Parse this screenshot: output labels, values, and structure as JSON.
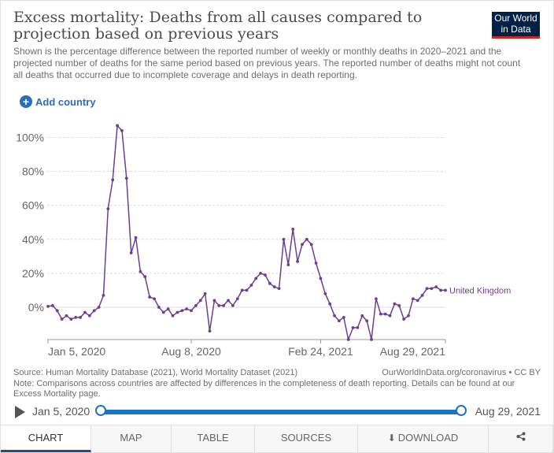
{
  "header": {
    "title": "Excess mortality: Deaths from all causes compared to projection based on previous years",
    "subtitle": "Shown is the percentage difference between the reported number of weekly or monthly deaths in 2020–2021 and the projected number of deaths for the same period based on previous years. The reported number of deaths might not count all deaths that occurred due to incomplete coverage and delays in death reporting.",
    "logo_line1": "Our World",
    "logo_line2": "in Data"
  },
  "controls": {
    "add_country": "Add country"
  },
  "chart_data": {
    "type": "line",
    "ylim": [
      -20,
      108
    ],
    "y_ticks": [
      0,
      20,
      40,
      60,
      80,
      100
    ],
    "y_tick_labels": [
      "0%",
      "20%",
      "40%",
      "60%",
      "80%",
      "100%"
    ],
    "x_tick_labels": [
      "Jan 5, 2020",
      "Aug 8, 2020",
      "Feb 24, 2021",
      "Aug 29, 2021"
    ],
    "x_tick_index": [
      0,
      31,
      59,
      86
    ],
    "series": [
      {
        "name": "United Kingdom",
        "color": "#6d3e91",
        "values": [
          0.5,
          1,
          -2,
          -7,
          -5,
          -7,
          -6,
          -6,
          -3,
          -5,
          -2,
          0,
          7,
          58,
          75,
          107,
          104,
          76,
          32,
          41,
          21,
          18,
          6,
          5,
          0,
          -3,
          -1,
          -5,
          -3,
          -2,
          -1,
          -2,
          1,
          4,
          8,
          -14,
          4,
          1,
          1,
          4,
          1,
          5,
          10,
          10,
          13,
          17,
          20,
          19,
          14,
          12,
          11,
          40,
          25,
          46,
          27,
          37,
          40,
          37,
          26,
          17,
          8,
          2,
          -5,
          -8,
          -6,
          -19,
          -12,
          -12,
          -5,
          -8,
          -19,
          5,
          -4,
          -4,
          -5,
          2,
          1,
          -7,
          -5,
          5,
          4,
          7,
          11,
          11,
          12,
          10,
          10
        ]
      }
    ]
  },
  "footer": {
    "source": "Source: Human Mortality Database (2021), World Mortality Dataset (2021)",
    "license": "OurWorldInData.org/coronavirus • CC BY",
    "note": "Note: Comparisons across countries are affected by differences in the completeness of death reporting. Details can be found at our Excess Mortality page."
  },
  "timeline": {
    "start": "Jan 5, 2020",
    "end": "Aug 29, 2021"
  },
  "tabs": [
    {
      "label": "CHART",
      "active": true
    },
    {
      "label": "MAP",
      "active": false
    },
    {
      "label": "TABLE",
      "active": false
    },
    {
      "label": "SOURCES",
      "active": false
    },
    {
      "label": "DOWNLOAD",
      "active": false
    }
  ]
}
